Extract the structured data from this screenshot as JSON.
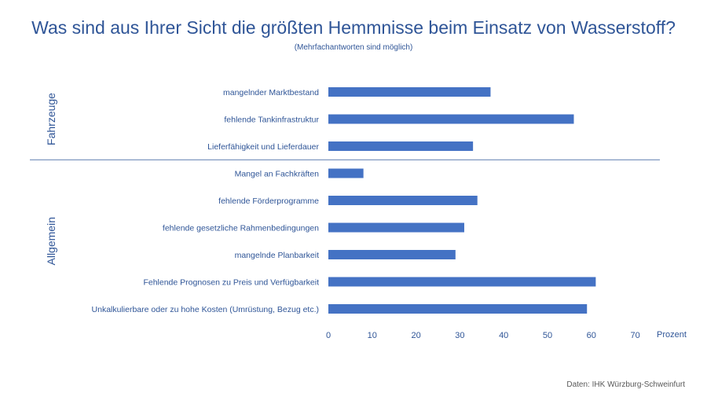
{
  "title": "Was sind aus Ihrer Sicht die größten Hemmnisse beim Einsatz von Wasserstoff?",
  "subtitle": "(Mehrfachantworten sind möglich)",
  "source": "Daten: IHK Würzburg-Schweinfurt",
  "colors": {
    "bar": "#4472C4",
    "text": "#2F5597",
    "line": "#2F5597",
    "source": "#595959"
  },
  "chart_data": {
    "type": "bar",
    "orientation": "horizontal",
    "xlabel": "Prozent",
    "xlim": [
      0,
      70
    ],
    "xticks": [
      0,
      10,
      20,
      30,
      40,
      50,
      60,
      70
    ],
    "grid": false,
    "groups": [
      {
        "name": "Fahrzeuge",
        "categories": [
          "mangelnder Marktbestand",
          "fehlende Tankinfrastruktur",
          "Lieferfähigkeit und Lieferdauer"
        ],
        "values": [
          37,
          56,
          33
        ]
      },
      {
        "name": "Allgemein",
        "categories": [
          "Mangel an Fachkräften",
          "fehlende Förderprogramme",
          "fehlende gesetzliche Rahmenbedingungen",
          "mangelnde Planbarkeit",
          "Fehlende Prognosen zu Preis und Verfügbarkeit",
          "Unkalkulierbare oder zu hohe Kosten (Umrüstung, Bezug etc.)"
        ],
        "values": [
          8,
          34,
          31,
          29,
          61,
          59
        ]
      }
    ]
  }
}
